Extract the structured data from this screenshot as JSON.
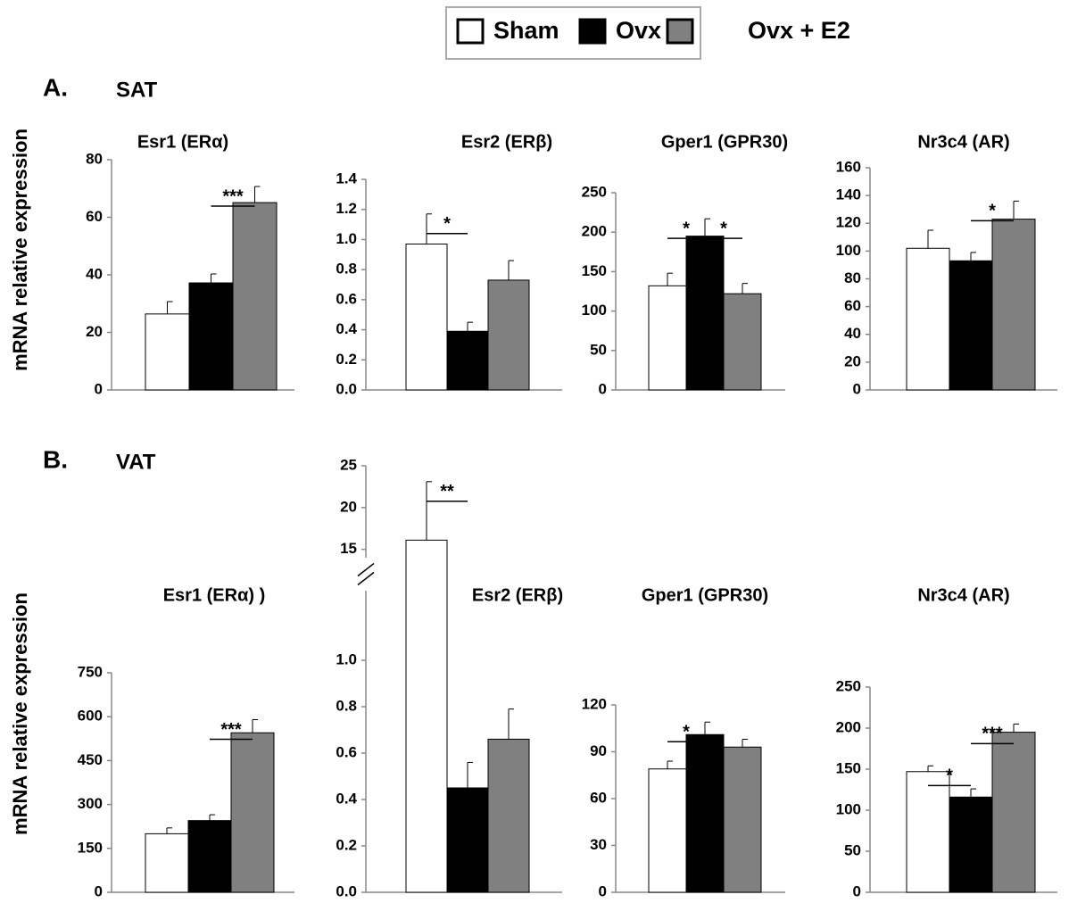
{
  "panels": [
    {
      "label": "A.",
      "tissue": "SAT",
      "ylabel": "mRNA relative expression"
    },
    {
      "label": "B.",
      "tissue": "VAT",
      "ylabel": "mRNA relative expression"
    }
  ],
  "chart_data": [
    {
      "type": "bar",
      "title": "Esr1 (ERα)",
      "categories": [
        null
      ],
      "series": [
        {
          "name": "Sham",
          "color": "#ffffff",
          "values": [
            26.4
          ],
          "errors": [
            4.3
          ]
        },
        {
          "name": "Ovx",
          "color": "#000000",
          "values": [
            37.2
          ],
          "errors": [
            3.1
          ]
        },
        {
          "name": "Ovx + E2",
          "color": "#808080",
          "values": [
            65.1
          ],
          "errors": [
            5.6
          ]
        }
      ],
      "ylim": [
        0,
        80
      ],
      "yticks": [
        0,
        20,
        40,
        60,
        80
      ],
      "annotations": [
        {
          "label": "***",
          "series": [
            1,
            2
          ]
        }
      ]
    },
    {
      "type": "bar",
      "title": "Esr2 (ERβ)",
      "categories": [
        null
      ],
      "series": [
        {
          "name": "Sham",
          "color": "#ffffff",
          "values": [
            0.97
          ],
          "errors": [
            0.2
          ]
        },
        {
          "name": "Ovx",
          "color": "#000000",
          "values": [
            0.39
          ],
          "errors": [
            0.06
          ]
        },
        {
          "name": "Ovx + E2",
          "color": "#808080",
          "values": [
            0.73
          ],
          "errors": [
            0.13
          ]
        }
      ],
      "ylim": [
        0,
        1.4
      ],
      "yticks": [
        {
          "value": 0,
          "label": "0.0"
        },
        0.2,
        0.4,
        0.6,
        0.8,
        {
          "value": 1,
          "label": "1.0"
        },
        1.2,
        1.4
      ],
      "annotations": [
        {
          "label": "*",
          "series": [
            0,
            1
          ]
        }
      ]
    },
    {
      "type": "bar",
      "title": "Gper1 (GPR30)",
      "categories": [
        null
      ],
      "series": [
        {
          "name": "Sham",
          "color": "#ffffff",
          "values": [
            132
          ],
          "errors": [
            16
          ]
        },
        {
          "name": "Ovx",
          "color": "#000000",
          "values": [
            195
          ],
          "errors": [
            22
          ]
        },
        {
          "name": "Ovx + E2",
          "color": "#808080",
          "values": [
            122
          ],
          "errors": [
            13
          ]
        }
      ],
      "ylim": [
        0,
        250
      ],
      "yticks": [
        0,
        50,
        100,
        150,
        200,
        250
      ],
      "annotations": [
        {
          "label": "*",
          "series": [
            0,
            1
          ]
        },
        {
          "label": "*",
          "series": [
            1,
            2
          ]
        }
      ]
    },
    {
      "type": "bar",
      "title": "Nr3c4 (AR)",
      "categories": [
        null
      ],
      "series": [
        {
          "name": "Sham",
          "color": "#ffffff",
          "values": [
            102
          ],
          "errors": [
            13
          ]
        },
        {
          "name": "Ovx",
          "color": "#000000",
          "values": [
            93
          ],
          "errors": [
            6
          ]
        },
        {
          "name": "Ovx + E2",
          "color": "#808080",
          "values": [
            123
          ],
          "errors": [
            13
          ]
        }
      ],
      "ylim": [
        0,
        160
      ],
      "yticks": [
        0,
        20,
        40,
        60,
        80,
        100,
        120,
        140,
        160
      ],
      "annotations": [
        {
          "label": "*",
          "series": [
            1,
            2
          ]
        }
      ]
    },
    {
      "type": "bar",
      "title": "Esr1 (ERα) )",
      "categories": [
        null
      ],
      "series": [
        {
          "name": "Sham",
          "color": "#ffffff",
          "values": [
            200
          ],
          "errors": [
            20
          ]
        },
        {
          "name": "Ovx",
          "color": "#000000",
          "values": [
            245
          ],
          "errors": [
            20
          ]
        },
        {
          "name": "Ovx + E2",
          "color": "#808080",
          "values": [
            545
          ],
          "errors": [
            45
          ]
        }
      ],
      "ylim": [
        0,
        750
      ],
      "yticks": [
        0,
        150,
        300,
        450,
        600,
        750
      ],
      "annotations": [
        {
          "label": "***",
          "series": [
            1,
            2
          ]
        }
      ]
    },
    {
      "type": "bar",
      "title": "Esr2 (ERβ)",
      "categories": [
        null
      ],
      "series": [
        {
          "name": "Sham",
          "color": "#ffffff",
          "values": [
            16.1
          ],
          "errors": [
            7
          ]
        },
        {
          "name": "Ovx",
          "color": "#000000",
          "values": [
            0.45
          ],
          "errors": [
            0.11
          ]
        },
        {
          "name": "Ovx + E2",
          "color": "#808080",
          "values": [
            0.66
          ],
          "errors": [
            0.13
          ]
        }
      ],
      "ylim": [
        0,
        25
      ],
      "ybreak": [
        1.3,
        14
      ],
      "yticks": [
        {
          "value": 0,
          "label": "0.0"
        },
        0.2,
        0.4,
        0.6,
        0.8,
        {
          "value": 1,
          "label": "1.0"
        },
        15,
        20,
        25
      ],
      "annotations": [
        {
          "label": "**",
          "series": [
            0,
            1
          ]
        }
      ]
    },
    {
      "type": "bar",
      "title": "Gper1 (GPR30)",
      "categories": [
        null
      ],
      "series": [
        {
          "name": "Sham",
          "color": "#ffffff",
          "values": [
            79
          ],
          "errors": [
            5
          ]
        },
        {
          "name": "Ovx",
          "color": "#000000",
          "values": [
            101
          ],
          "errors": [
            8
          ]
        },
        {
          "name": "Ovx + E2",
          "color": "#808080",
          "values": [
            93
          ],
          "errors": [
            5
          ]
        }
      ],
      "ylim": [
        0,
        120
      ],
      "yticks": [
        0,
        30,
        60,
        90,
        120
      ],
      "annotations": [
        {
          "label": "*",
          "series": [
            0,
            1
          ]
        }
      ]
    },
    {
      "type": "bar",
      "title": "Nr3c4 (AR)",
      "categories": [
        null
      ],
      "series": [
        {
          "name": "Sham",
          "color": "#ffffff",
          "values": [
            147
          ],
          "errors": [
            7
          ]
        },
        {
          "name": "Ovx",
          "color": "#000000",
          "values": [
            116
          ],
          "errors": [
            10
          ]
        },
        {
          "name": "Ovx + E2",
          "color": "#808080",
          "values": [
            195
          ],
          "errors": [
            10
          ]
        }
      ],
      "ylim": [
        0,
        250
      ],
      "yticks": [
        0,
        50,
        100,
        150,
        200,
        250
      ],
      "annotations": [
        {
          "label": "*",
          "series": [
            0,
            1
          ]
        },
        {
          "label": "***",
          "series": [
            1,
            2
          ]
        }
      ]
    }
  ]
}
